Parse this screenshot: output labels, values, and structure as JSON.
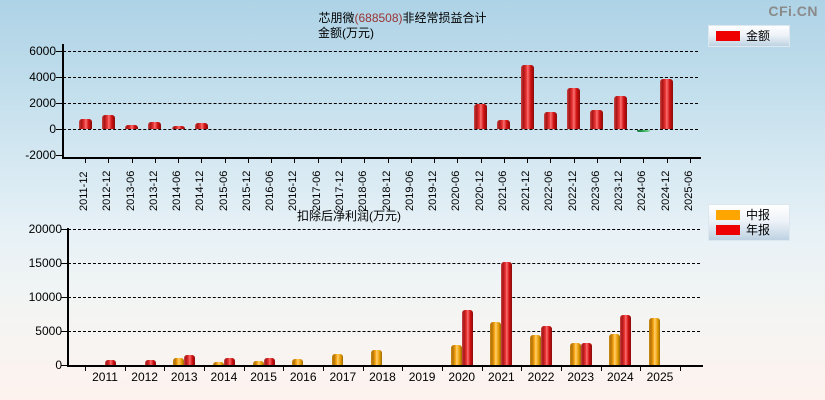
{
  "page": {
    "logo": "CFi.CN"
  },
  "chart_data": [
    {
      "id": "non-recurring-gains",
      "type": "bar",
      "title_prefix": "芯朋微",
      "title_code": "(688508)",
      "title_suffix": "非经常损益合计",
      "axis_unit_label": "金额(万元)",
      "legend_position": "top-right",
      "grid": "dashed-horizontal",
      "legend": [
        {
          "label": "金额",
          "color": "#ee0000"
        }
      ],
      "colors": {
        "positive_bar": "#ee0000",
        "negative_bar": "#2fae57"
      },
      "y_ticks": [
        6000,
        4000,
        2000,
        0,
        -2000
      ],
      "ylim": [
        -2000,
        6000
      ],
      "categories": [
        "2011-12",
        "2012-12",
        "2013-06",
        "2013-12",
        "2014-06",
        "2014-12",
        "2015-06",
        "2015-12",
        "2016-06",
        "2016-12",
        "2017-06",
        "2017-12",
        "2018-06",
        "2018-12",
        "2019-06",
        "2019-12",
        "2020-06",
        "2020-12",
        "2021-06",
        "2021-12",
        "2022-06",
        "2022-12",
        "2023-06",
        "2023-12",
        "2024-06",
        "2024-12",
        "2025-06"
      ],
      "values": [
        750,
        1050,
        300,
        550,
        200,
        450,
        null,
        null,
        null,
        null,
        null,
        null,
        null,
        null,
        null,
        null,
        null,
        1950,
        700,
        4950,
        1300,
        3150,
        1500,
        2550,
        -150,
        3850,
        null
      ]
    },
    {
      "id": "deducted-net-profit",
      "type": "bar",
      "title": "扣除后净利润(万元)",
      "legend_position": "top-right",
      "grid": "dashed-horizontal",
      "legend": [
        {
          "label": "中报",
          "color": "#ffa500"
        },
        {
          "label": "年报",
          "color": "#ee0000"
        }
      ],
      "y_ticks": [
        20000,
        15000,
        10000,
        5000,
        0
      ],
      "ylim": [
        0,
        20000
      ],
      "categories": [
        "2011",
        "2012",
        "2013",
        "2014",
        "2015",
        "2016",
        "2017",
        "2018",
        "2019",
        "2020",
        "2021",
        "2022",
        "2023",
        "2024",
        "2025"
      ],
      "series": [
        {
          "name": "中报",
          "color": "#ffa500",
          "values": [
            null,
            null,
            1000,
            500,
            600,
            900,
            1600,
            2200,
            null,
            2900,
            6300,
            4400,
            3300,
            4500,
            6900
          ]
        },
        {
          "name": "年报",
          "color": "#ee0000",
          "values": [
            700,
            700,
            1400,
            1100,
            1100,
            null,
            null,
            null,
            null,
            8100,
            15100,
            5800,
            3300,
            7300,
            null
          ]
        }
      ]
    }
  ]
}
